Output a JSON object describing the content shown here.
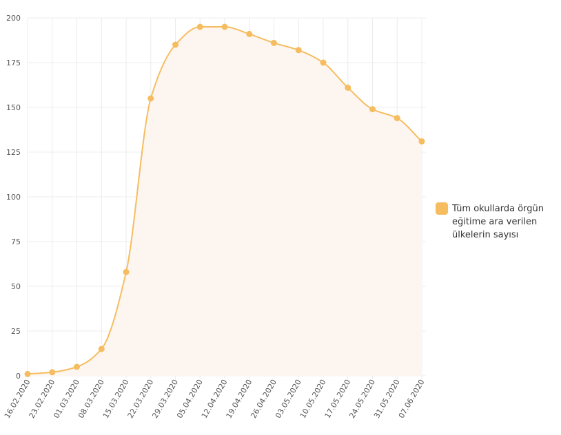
{
  "chart_data": {
    "type": "area",
    "categories": [
      "16.02.2020",
      "23.02.2020",
      "01.03.2020",
      "08.03.2020",
      "15.03.2020",
      "22.03.2020",
      "29.03.2020",
      "05.04.2020",
      "12.04.2020",
      "19.04.2020",
      "26.04.2020",
      "03.05.2020",
      "10.05.2020",
      "17.05.2020",
      "24.05.2020",
      "31.05.2020",
      "07.06.2020"
    ],
    "series": [
      {
        "name": "Tüm okullarda örgün eğitime ara verilen ülkelerin sayısı",
        "values": [
          1,
          2,
          5,
          15,
          58,
          155,
          185,
          195,
          195,
          191,
          186,
          182,
          175,
          161,
          149,
          144,
          131
        ],
        "color": "#f6bd60",
        "fill": "#fdf5ef"
      }
    ],
    "ylim": [
      0,
      200
    ],
    "yticks": [
      0,
      25,
      50,
      75,
      100,
      125,
      150,
      175,
      200
    ],
    "grid": true,
    "legend": "right",
    "title": "",
    "xlabel": "",
    "ylabel": ""
  }
}
